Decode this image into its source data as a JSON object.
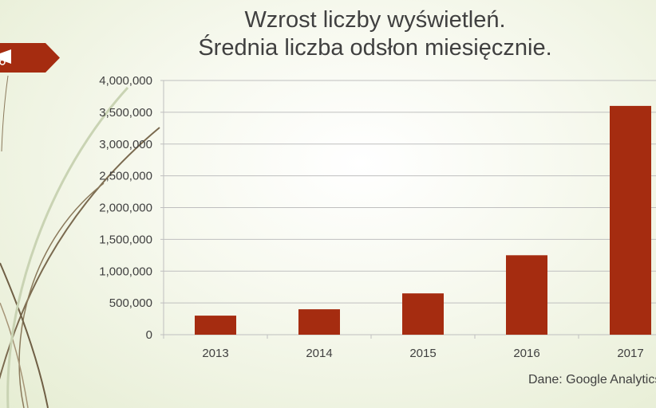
{
  "title_lines": [
    "Wzrost liczby wyświetleń.",
    "Średnia liczba odsłon miesięcznie."
  ],
  "source_note": "Dane: Google Analytics",
  "colors": {
    "bar": "#a52c10",
    "tag": "#a52c10",
    "grid": "#bfbfbf",
    "text": "#404040"
  },
  "tag_icon": "megaphone-icon",
  "chart_data": {
    "type": "bar",
    "categories": [
      "2013",
      "2014",
      "2015",
      "2016",
      "2017"
    ],
    "values": [
      300000,
      400000,
      650000,
      1250000,
      3600000
    ],
    "ylim": [
      0,
      4000000
    ],
    "yticks": [
      0,
      500000,
      1000000,
      1500000,
      2000000,
      2500000,
      3000000,
      3500000,
      4000000
    ],
    "ytick_labels": [
      "0",
      "500,000",
      "1,000,000",
      "1,500,000",
      "2,000,000",
      "2,500,000",
      "3,000,000",
      "3,500,000",
      "4,000,000"
    ],
    "grid": true,
    "legend": "none"
  }
}
